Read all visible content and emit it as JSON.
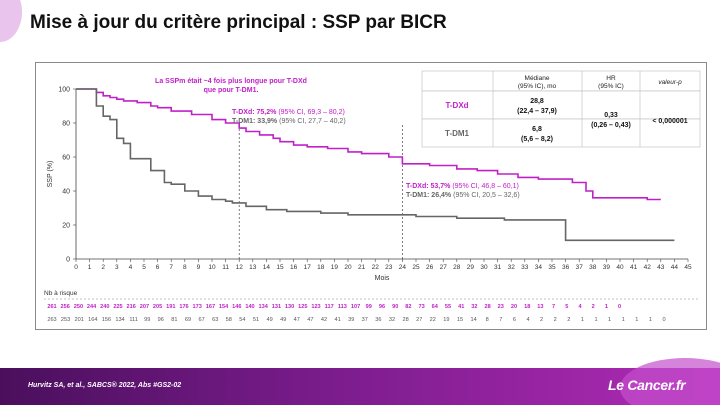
{
  "slide": {
    "title": "Mise à jour du critère principal : SSP par BICR",
    "reference": "Hurvitz SA, et al., SABCS® 2022, Abs #GS2-02",
    "brand": "Le Cancer.fr",
    "accent_color": "#c020c8",
    "gray_color": "#666666"
  },
  "chart_data": {
    "type": "line",
    "xlabel": "Mois",
    "ylabel": "SSP (%)",
    "xlim": [
      0,
      45
    ],
    "ylim": [
      0,
      100
    ],
    "xticks": [
      0,
      1,
      2,
      3,
      4,
      5,
      6,
      7,
      8,
      9,
      10,
      11,
      12,
      13,
      14,
      15,
      16,
      17,
      18,
      19,
      20,
      21,
      22,
      23,
      24,
      25,
      26,
      27,
      28,
      29,
      30,
      31,
      32,
      33,
      34,
      35,
      36,
      37,
      38,
      39,
      40,
      41,
      42,
      43,
      44,
      45
    ],
    "yticks": [
      0,
      20,
      40,
      60,
      80,
      100
    ],
    "grid": false,
    "series": [
      {
        "name": "T-DXd",
        "color": "#c020c8",
        "x": [
          0,
          1.2,
          1.5,
          2.0,
          2.5,
          3.0,
          3.5,
          4.5,
          5.5,
          6.0,
          7.0,
          8.5,
          10.0,
          11.0,
          12.0,
          12.5,
          13.5,
          14.5,
          15.0,
          16.0,
          17.0,
          18.5,
          20.0,
          21.0,
          23.0,
          24.0,
          26.0,
          28.0,
          29.5,
          31.0,
          32.5,
          34.0,
          35.5,
          36.5,
          37.5,
          38.0,
          40.0,
          42.0,
          43.0
        ],
        "y": [
          100,
          100,
          98,
          96,
          95,
          94,
          93,
          92,
          90,
          89,
          87,
          85,
          82,
          80,
          77,
          75,
          73,
          71,
          69,
          67,
          66,
          65,
          63,
          62,
          60,
          56,
          55,
          53,
          52,
          50,
          48,
          47,
          47,
          45,
          40,
          36,
          36,
          35,
          35
        ]
      },
      {
        "name": "T-DM1",
        "color": "#666666",
        "x": [
          0,
          1.2,
          1.5,
          2.0,
          2.5,
          3.0,
          3.5,
          4.0,
          5.5,
          6.5,
          7.0,
          8.0,
          9.0,
          10.0,
          11.0,
          11.5,
          12.5,
          14.0,
          15.5,
          18.0,
          20.0,
          24.0,
          25.0,
          28.0,
          31.5,
          36.0,
          38.0,
          44.0
        ],
        "y": [
          100,
          100,
          90,
          84,
          82,
          71,
          68,
          59,
          52,
          45,
          44,
          40,
          37,
          35,
          34,
          33,
          31,
          29,
          28,
          27,
          26,
          26,
          25,
          24,
          23,
          11,
          11,
          11
        ]
      }
    ],
    "annotations": {
      "headline_line1": "La SSPm était ~4 fois plus longue pour T-DXd",
      "headline_line2": "que pour T-DM1.",
      "m12_tdxd_label": "T-DXd:",
      "m12_tdxd_value": "75,2%",
      "m12_tdxd_ci": "(95% CI, 69,3 – 80,2)",
      "m12_tdm1_label": "T-DM1:",
      "m12_tdm1_value": "33,9%",
      "m12_tdm1_ci": "(95% CI, 27,7 – 40,2)",
      "m24_tdxd_label": "T-DXd:",
      "m24_tdxd_value": "53,7%",
      "m24_tdxd_ci": "(95% CI, 46,8 – 60,1)",
      "m24_tdm1_label": "T-DM1:",
      "m24_tdm1_value": "26,4%",
      "m24_tdm1_ci": "(95% CI, 20,5 – 32,6)",
      "vline_months": [
        12,
        24
      ]
    },
    "stats_table": {
      "headers": [
        "Médiane",
        "(95% IC), mo",
        "HR",
        "(95% IC)",
        "valeur-p"
      ],
      "tdxd_label": "T-DXd",
      "tdxd_median": "28,8",
      "tdxd_ci": "(22,4 – 37,9)",
      "tdm1_label": "T-DM1",
      "tdm1_median": "6,8",
      "tdm1_ci": "(5,6 – 8,2)",
      "hr": "0,33",
      "hr_ci": "(0,26 – 0,43)",
      "pvalue": "< 0,000001"
    },
    "risk_table": {
      "title": "Nb à risque",
      "tdxd": [
        "261",
        "256",
        "250",
        "244",
        "240",
        "225",
        "216",
        "207",
        "205",
        "191",
        "176",
        "173",
        "167",
        "154",
        "146",
        "140",
        "134",
        "131",
        "130",
        "125",
        "123",
        "117",
        "113",
        "107",
        "99",
        "96",
        "90",
        "82",
        "73",
        "64",
        "55",
        "41",
        "32",
        "28",
        "23",
        "20",
        "18",
        "13",
        "7",
        "5",
        "4",
        "2",
        "1",
        "0"
      ],
      "tdm1": [
        "263",
        "253",
        "201",
        "164",
        "156",
        "134",
        "111",
        "99",
        "96",
        "81",
        "69",
        "67",
        "63",
        "58",
        "54",
        "51",
        "49",
        "49",
        "47",
        "47",
        "42",
        "41",
        "39",
        "37",
        "36",
        "32",
        "28",
        "27",
        "22",
        "19",
        "15",
        "14",
        "8",
        "7",
        "6",
        "4",
        "2",
        "2",
        "2",
        "1",
        "1",
        "1",
        "1",
        "1",
        "1",
        "0"
      ]
    }
  }
}
